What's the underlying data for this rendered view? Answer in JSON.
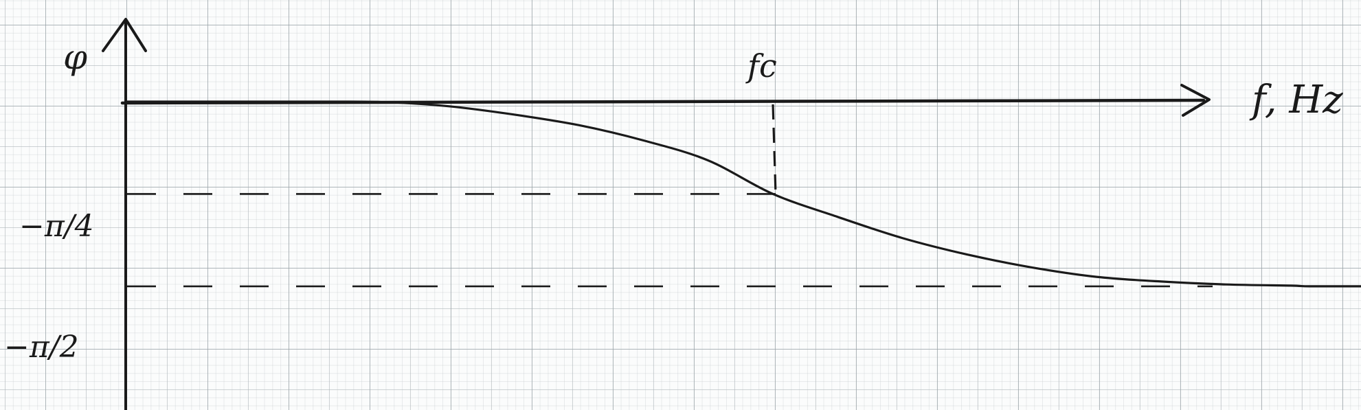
{
  "chart_data": {
    "type": "line",
    "ylabel": "φ",
    "xlabel": "f, Hz",
    "x_marker": {
      "label": "fc",
      "x": 1.0
    },
    "y_ticks": [
      {
        "label": "−π/4",
        "value": -0.785398
      },
      {
        "label": "−π/2",
        "value": -1.570796
      }
    ],
    "series": [
      {
        "x": [
          0.0,
          0.1,
          0.2,
          0.3,
          0.4,
          0.5,
          0.6,
          0.7,
          0.8,
          0.9,
          1.0,
          1.1,
          1.2,
          1.3,
          1.4,
          1.5,
          1.6,
          1.7,
          1.8,
          1.83,
          1.9,
          2.0,
          2.1,
          2.2
        ],
        "y": [
          0.0,
          0.0,
          0.0,
          0.0,
          -0.004,
          -0.04,
          -0.11,
          -0.2,
          -0.33,
          -0.5,
          -0.785,
          -0.98,
          -1.16,
          -1.3,
          -1.41,
          -1.49,
          -1.53,
          -1.555,
          -1.565,
          -1.5708,
          -1.5708,
          -1.5708,
          -1.5708,
          -1.5708
        ]
      }
    ],
    "xlim": [
      0,
      2.2
    ],
    "ylim": [
      -1.85,
      0.45
    ],
    "grid": true,
    "colors": {
      "ink": "#1a1a1a",
      "paper": "#fbfcfc",
      "grid": "#9aa4a8"
    }
  }
}
